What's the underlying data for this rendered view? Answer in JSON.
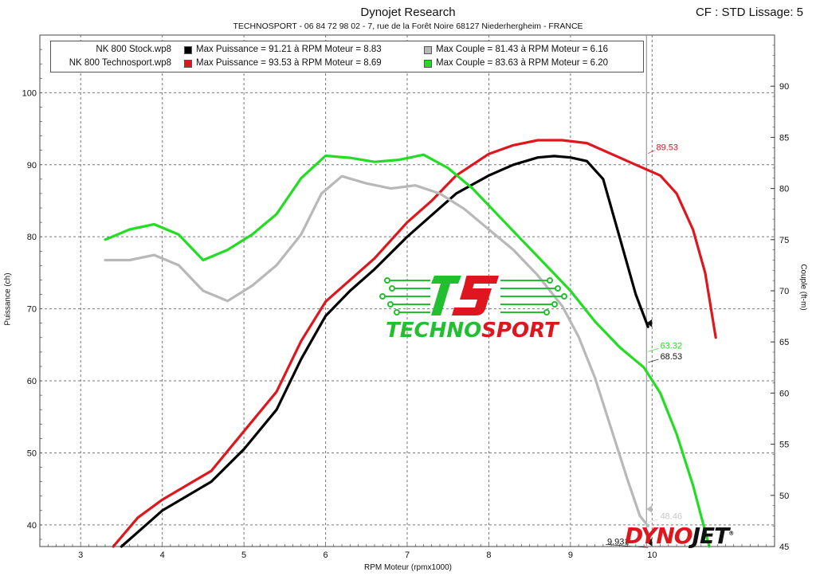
{
  "header": {
    "title": "Dynojet Research",
    "subtitle": "TECHNOSPORT - 06 84 72 98 02 - 7, rue de la Forêt Noire 68127 Niederhergheim - FRANCE",
    "cf_label": "CF : STD Lissage: 5"
  },
  "legend": {
    "rows": [
      {
        "file": "NK 800 Stock.wp8",
        "power_text": "Max Puissance = 91.21 à RPM Moteur = 8.83",
        "torque_text": "Max Couple = 81.43 à RPM Moteur = 6.16",
        "power_color": "#000000",
        "torque_color": "#b8b8b8"
      },
      {
        "file": "NK 800 Technosport.wp8",
        "power_text": "Max Puissance = 93.53 à RPM Moteur = 8.69",
        "torque_text": "Max Couple = 83.63 à RPM Moteur = 6.20",
        "power_color": "#e0161e",
        "torque_color": "#22dd22"
      }
    ]
  },
  "logo": {
    "word_green": "TECHNO",
    "word_red": "SPORT"
  },
  "brand": {
    "part_red": "DYNO",
    "part_black": "JET",
    "reg": "®"
  },
  "chart_data": {
    "type": "line",
    "xlabel": "RPM Moteur (rpmx1000)",
    "ylabel": "Puissance (ch)",
    "y2label": "Couple (ft-m)",
    "xlim": [
      2.5,
      11.5
    ],
    "ylim": [
      37,
      108
    ],
    "y2lim": [
      45,
      95
    ],
    "x_ticks": [
      3,
      4,
      5,
      6,
      7,
      8,
      9,
      10
    ],
    "y_ticks": [
      40,
      50,
      60,
      70,
      80,
      90,
      100
    ],
    "y2_ticks": [
      45,
      50,
      55,
      60,
      65,
      70,
      75,
      80,
      85,
      90
    ],
    "grid": true,
    "cursor_x": 9.931,
    "series": [
      {
        "name": "NK 800 Stock.wp8",
        "quantity": "Puissance",
        "axis": "left",
        "color": "#000000",
        "x": [
          3.5,
          3.8,
          4.0,
          4.3,
          4.6,
          5.0,
          5.4,
          5.7,
          6.0,
          6.3,
          6.6,
          7.0,
          7.3,
          7.6,
          8.0,
          8.3,
          8.6,
          8.8,
          9.0,
          9.2,
          9.4,
          9.6,
          9.8,
          9.95
        ],
        "y": [
          37,
          40,
          42,
          44,
          46,
          50.5,
          56,
          63,
          69,
          72.5,
          75.5,
          80,
          83,
          86,
          88.5,
          90,
          91,
          91.2,
          91,
          90.5,
          88,
          80,
          72,
          67.5
        ]
      },
      {
        "name": "NK 800 Technosport.wp8",
        "quantity": "Puissance",
        "axis": "left",
        "color": "#e0161e",
        "x": [
          3.4,
          3.7,
          4.0,
          4.3,
          4.6,
          5.0,
          5.4,
          5.7,
          6.0,
          6.3,
          6.6,
          7.0,
          7.3,
          7.6,
          8.0,
          8.3,
          8.6,
          8.9,
          9.2,
          9.5,
          9.8,
          10.1,
          10.3,
          10.5,
          10.65,
          10.78
        ],
        "y": [
          37,
          41,
          43.5,
          45.5,
          47.5,
          53,
          58.5,
          65.5,
          71,
          74,
          77,
          82,
          85,
          88.5,
          91.5,
          92.7,
          93.4,
          93.4,
          93,
          91.5,
          90,
          88.5,
          86,
          81,
          75,
          66
        ]
      },
      {
        "name": "NK 800 Stock.wp8",
        "quantity": "Couple",
        "axis": "right",
        "color": "#b8b8b8",
        "x": [
          3.3,
          3.6,
          3.9,
          4.2,
          4.5,
          4.8,
          5.1,
          5.4,
          5.7,
          5.95,
          6.2,
          6.5,
          6.8,
          7.1,
          7.4,
          7.7,
          8.0,
          8.3,
          8.6,
          8.9,
          9.1,
          9.3,
          9.5,
          9.7,
          9.85,
          9.95
        ],
        "y": [
          73,
          73,
          73.5,
          72.5,
          70,
          69,
          70.5,
          72.5,
          75.5,
          79.5,
          81.2,
          80.5,
          80,
          80.3,
          79.5,
          78,
          76,
          74,
          71.5,
          68.5,
          65.5,
          61.5,
          56.5,
          51.5,
          48,
          47
        ]
      },
      {
        "name": "NK 800 Technosport.wp8",
        "quantity": "Couple",
        "axis": "right",
        "color": "#22dd22",
        "x": [
          3.3,
          3.6,
          3.9,
          4.2,
          4.5,
          4.8,
          5.1,
          5.4,
          5.7,
          6.0,
          6.3,
          6.6,
          6.9,
          7.2,
          7.5,
          7.8,
          8.1,
          8.4,
          8.7,
          9.0,
          9.3,
          9.6,
          9.9,
          10.1,
          10.3,
          10.5,
          10.7
        ],
        "y": [
          75,
          76,
          76.5,
          75.5,
          73,
          74,
          75.5,
          77.5,
          81,
          83.2,
          83,
          82.6,
          82.8,
          83.3,
          82,
          80,
          77.5,
          75,
          72.5,
          70,
          67,
          64.5,
          62.5,
          60,
          56,
          51,
          45
        ]
      }
    ],
    "annotations": [
      {
        "text": "89.53",
        "color": "#e0161e",
        "x": 10.05,
        "y": 92
      },
      {
        "text": "63.32",
        "color": "#22dd22",
        "x": 10.1,
        "y": 64.5
      },
      {
        "text": "68.53",
        "color": "#111111",
        "x": 10.1,
        "y": 63
      },
      {
        "text": "9.931",
        "color": "#111111",
        "x": 9.45,
        "y": 37.3
      },
      {
        "text": "48.46",
        "color": "#c8c8c8",
        "x": 10.1,
        "y": 40.8
      }
    ]
  }
}
